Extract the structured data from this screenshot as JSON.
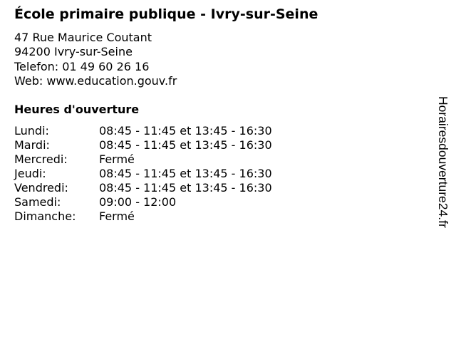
{
  "title": "École primaire publique - Ivry-sur-Seine",
  "address": {
    "street": "47 Rue Maurice Coutant",
    "city": "94200 Ivry-sur-Seine",
    "phone": "Telefon: 01 49 60 26 16",
    "web": "Web: www.education.gouv.fr"
  },
  "hours_heading": "Heures d'ouverture",
  "hours": [
    {
      "day": "Lundi:",
      "time": "08:45 - 11:45 et 13:45 - 16:30"
    },
    {
      "day": "Mardi:",
      "time": "08:45 - 11:45 et 13:45 - 16:30"
    },
    {
      "day": "Mercredi:",
      "time": "Fermé"
    },
    {
      "day": "Jeudi:",
      "time": "08:45 - 11:45 et 13:45 - 16:30"
    },
    {
      "day": "Vendredi:",
      "time": "08:45 - 11:45 et 13:45 - 16:30"
    },
    {
      "day": "Samedi:",
      "time": "09:00 - 12:00"
    },
    {
      "day": "Dimanche:",
      "time": "Fermé"
    }
  ],
  "watermark": "Horairesdouverture24.fr"
}
